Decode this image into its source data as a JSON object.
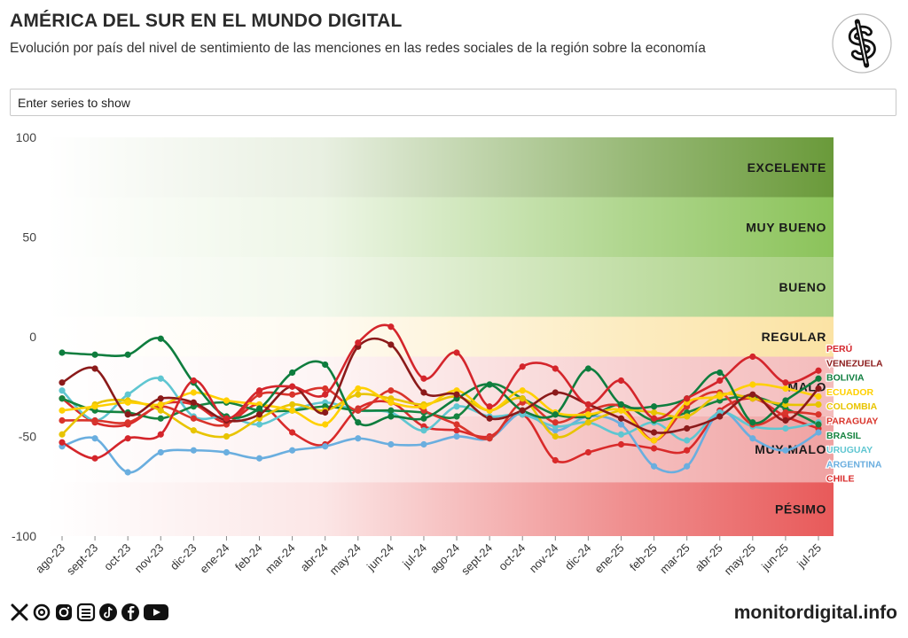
{
  "header": {
    "title": "AMÉRICA DEL SUR EN EL MUNDO DIGITAL",
    "subtitle": "Evolución por país del nivel de sentimiento de las menciones en las redes sociales de la región sobre la economía"
  },
  "search": {
    "placeholder": "Enter series to show"
  },
  "footer": {
    "brand": "monitordigital.info",
    "social_icons": [
      "x-icon",
      "threads-icon",
      "instagram-icon",
      "substack-icon",
      "tiktok-icon",
      "facebook-icon",
      "youtube-icon"
    ]
  },
  "logo": {
    "icon": "dollar-sign-icon"
  },
  "chart_data": {
    "type": "line",
    "ylim": [
      -100,
      100
    ],
    "yticks": [
      "100",
      "50",
      "0",
      "-50",
      "-100"
    ],
    "ytick_values": [
      100,
      50,
      0,
      -50,
      -100
    ],
    "categories": [
      "ago-23",
      "sept-23",
      "oct-23",
      "nov-23",
      "dic-23",
      "ene-24",
      "feb-24",
      "mar-24",
      "abr-24",
      "may-24",
      "jun-24",
      "jul-24",
      "ago-24",
      "sept-24",
      "oct-24",
      "nov-24",
      "dic-24",
      "ene-25",
      "feb-25",
      "mar-25",
      "abr-25",
      "may-25",
      "jun-25",
      "jul-25"
    ],
    "bands": [
      {
        "label": "EXCELENTE",
        "from": 70,
        "to": 100,
        "color": "#6a9a3a"
      },
      {
        "label": "MUY BUENO",
        "from": 40,
        "to": 70,
        "color": "#8bc35a"
      },
      {
        "label": "BUENO",
        "from": 10,
        "to": 40,
        "color": "#a6cf7e"
      },
      {
        "label": "REGULAR",
        "from": -10,
        "to": 10,
        "color": "#fbe3a4"
      },
      {
        "label": "MALO",
        "from": -40,
        "to": -10,
        "color": "#f4bcbc"
      },
      {
        "label": "MUY MALO",
        "from": -73,
        "to": -40,
        "color": "#f0a2a2"
      },
      {
        "label": "PÉSIMO",
        "from": -100,
        "to": -73,
        "color": "#e85a5a"
      }
    ],
    "series": [
      {
        "name": "PERÚ",
        "color": "#d4252b",
        "values": [
          -53,
          -61,
          -51,
          -49,
          -22,
          -41,
          -27,
          -25,
          -29,
          -3,
          5,
          -21,
          -8,
          -35,
          -15,
          -16,
          -34,
          -22,
          -41,
          -31,
          -22,
          -10,
          -23,
          -17
        ]
      },
      {
        "name": "VENEZUELA",
        "color": "#8b1a1a",
        "values": [
          -23,
          -16,
          -39,
          -31,
          -33,
          -42,
          -39,
          -25,
          -38,
          -5,
          -4,
          -28,
          -29,
          -41,
          -37,
          -28,
          -34,
          -41,
          -48,
          -46,
          -40,
          -29,
          -42,
          -26
        ]
      },
      {
        "name": "BOLIVIA",
        "color": "#0e7d3e",
        "values": [
          -8,
          -9,
          -9,
          -1,
          -23,
          -40,
          -36,
          -18,
          -14,
          -43,
          -40,
          -41,
          -31,
          -24,
          -37,
          -39,
          -16,
          -34,
          -35,
          -31,
          -18,
          -43,
          -32,
          -21
        ]
      },
      {
        "name": "ECUADOR",
        "color": "#ffd000",
        "values": [
          -37,
          -35,
          -33,
          -34,
          -28,
          -32,
          -34,
          -37,
          -44,
          -26,
          -33,
          -35,
          -27,
          -37,
          -27,
          -38,
          -39,
          -37,
          -52,
          -33,
          -30,
          -24,
          -26,
          -30
        ]
      },
      {
        "name": "COLOMBIA",
        "color": "#e8c400",
        "values": [
          -49,
          -34,
          -32,
          -37,
          -47,
          -50,
          -41,
          -34,
          -37,
          -29,
          -31,
          -34,
          -30,
          -37,
          -31,
          -50,
          -43,
          -37,
          -38,
          -40,
          -29,
          -31,
          -34,
          -34
        ]
      },
      {
        "name": "PARAGUAY",
        "color": "#d9342b",
        "values": [
          -42,
          -42,
          -43,
          -35,
          -41,
          -44,
          -29,
          -29,
          -26,
          -37,
          -27,
          -37,
          -44,
          -51,
          -33,
          -43,
          -37,
          -35,
          -52,
          -35,
          -28,
          -44,
          -38,
          -39
        ]
      },
      {
        "name": "BRASIL",
        "color": "#15833f",
        "values": [
          -31,
          -37,
          -38,
          -41,
          -35,
          -33,
          -37,
          -37,
          -35,
          -37,
          -37,
          -38,
          -40,
          -24,
          -31,
          -39,
          -40,
          -34,
          -42,
          -38,
          -32,
          -30,
          -36,
          -44
        ]
      },
      {
        "name": "URUGUAY",
        "color": "#5fc6d1",
        "values": [
          -27,
          -42,
          -29,
          -21,
          -40,
          -40,
          -44,
          -37,
          -33,
          -37,
          -38,
          -47,
          -35,
          -40,
          -39,
          -45,
          -43,
          -49,
          -43,
          -52,
          -38,
          -45,
          -46,
          -43
        ]
      },
      {
        "name": "ARGENTINA",
        "color": "#6aaedf",
        "values": [
          -55,
          -51,
          -68,
          -58,
          -57,
          -58,
          -61,
          -57,
          -55,
          -51,
          -54,
          -54,
          -50,
          -51,
          -38,
          -47,
          -40,
          -44,
          -65,
          -65,
          -38,
          -51,
          -57,
          -48
        ]
      },
      {
        "name": "CHILE",
        "color": "#d92a2a",
        "values": [
          -31,
          -43,
          -44,
          -34,
          -34,
          -43,
          -34,
          -48,
          -54,
          -36,
          -33,
          -45,
          -47,
          -50,
          -39,
          -62,
          -58,
          -54,
          -56,
          -57,
          -37,
          -31,
          -40,
          -46
        ]
      }
    ]
  }
}
